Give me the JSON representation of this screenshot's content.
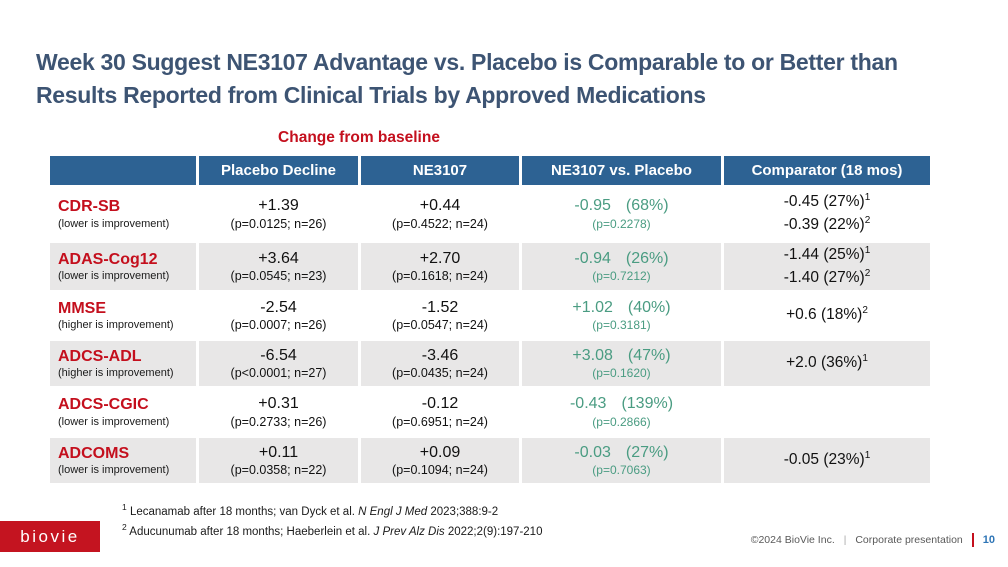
{
  "slide": {
    "title_lines": [
      "Week 30 Suggest NE3107 Advantage vs. Placebo is Comparable to or Better than",
      "Results Reported from Clinical Trials by Approved Medications"
    ],
    "caption": "Change from baseline"
  },
  "table": {
    "headers": [
      "",
      "Placebo Decline",
      "NE3107",
      "NE3107 vs. Placebo",
      "Comparator (18 mos)"
    ],
    "rows": [
      {
        "measure": "CDR-SB",
        "direction": "(lower is improvement)",
        "placebo": {
          "value": "+1.39",
          "stats": "(p=0.0125; n=26)"
        },
        "ne3107": {
          "value": "+0.44",
          "stats": "(p=0.4522; n=24)"
        },
        "vs": {
          "delta": "-0.95",
          "pct": "(68%)",
          "p": "(p=0.2278)"
        },
        "comparator": [
          {
            "text": "-0.45 (27%)",
            "sup": "1"
          },
          {
            "text": "-0.39 (22%)",
            "sup": "2"
          }
        ]
      },
      {
        "measure": "ADAS-Cog12",
        "direction": "(lower is improvement)",
        "placebo": {
          "value": "+3.64",
          "stats": "(p=0.0545; n=23)"
        },
        "ne3107": {
          "value": "+2.70",
          "stats": "(p=0.1618; n=24)"
        },
        "vs": {
          "delta": "-0.94",
          "pct": "(26%)",
          "p": "(p=0.7212)"
        },
        "comparator": [
          {
            "text": "-1.44 (25%)",
            "sup": "1"
          },
          {
            "text": "-1.40 (27%)",
            "sup": "2"
          }
        ]
      },
      {
        "measure": "MMSE",
        "direction": "(higher is improvement)",
        "placebo": {
          "value": "-2.54",
          "stats": "(p=0.0007; n=26)"
        },
        "ne3107": {
          "value": "-1.52",
          "stats": "(p=0.0547; n=24)"
        },
        "vs": {
          "delta": "+1.02",
          "pct": "(40%)",
          "p": "(p=0.3181)"
        },
        "comparator": [
          {
            "text": "+0.6 (18%)",
            "sup": "2"
          }
        ]
      },
      {
        "measure": "ADCS-ADL",
        "direction": "(higher is improvement)",
        "placebo": {
          "value": "-6.54",
          "stats": "(p<0.0001; n=27)"
        },
        "ne3107": {
          "value": "-3.46",
          "stats": "(p=0.0435; n=24)"
        },
        "vs": {
          "delta": "+3.08",
          "pct": "(47%)",
          "p": "(p=0.1620)"
        },
        "comparator": [
          {
            "text": "+2.0 (36%)",
            "sup": "1"
          }
        ]
      },
      {
        "measure": "ADCS-CGIC",
        "direction": "(lower is improvement)",
        "placebo": {
          "value": "+0.31",
          "stats": "(p=0.2733; n=26)"
        },
        "ne3107": {
          "value": "-0.12",
          "stats": "(p=0.6951; n=24)"
        },
        "vs": {
          "delta": "-0.43",
          "pct": "(139%)",
          "p": "(p=0.2866)"
        },
        "comparator": []
      },
      {
        "measure": "ADCOMS",
        "direction": "(lower is improvement)",
        "placebo": {
          "value": "+0.11",
          "stats": "(p=0.0358; n=22)"
        },
        "ne3107": {
          "value": "+0.09",
          "stats": "(p=0.1094; n=24)"
        },
        "vs": {
          "delta": "-0.03",
          "pct": "(27%)",
          "p": "(p=0.7063)"
        },
        "comparator": [
          {
            "text": "-0.05 (23%)",
            "sup": "1"
          }
        ]
      }
    ]
  },
  "footnotes": [
    {
      "sup": "1",
      "prefix": "Lecanamab after 18 months; van Dyck et al. ",
      "journal": "N Engl J Med",
      "suffix": " 2023;388:9-2"
    },
    {
      "sup": "2",
      "prefix": "Aducunumab after 18 months; Haeberlein et al. ",
      "journal": "J Prev Alz Dis",
      "suffix": " 2022;2(9):197-210"
    }
  ],
  "footer": {
    "logo_text": "biovie",
    "copyright": "©2024 BioVie Inc.",
    "divider": "|",
    "presentation_label": "Corporate presentation",
    "page_number": "10"
  },
  "colors": {
    "header_blue": "#2d6293",
    "accent_red": "#c40f1d",
    "title_navy": "#3d5473",
    "result_teal": "#4a9c82",
    "page_number_blue": "#2e75b6",
    "row_alt_gray": "#e8e7e7",
    "footer_text_gray": "#595959"
  }
}
